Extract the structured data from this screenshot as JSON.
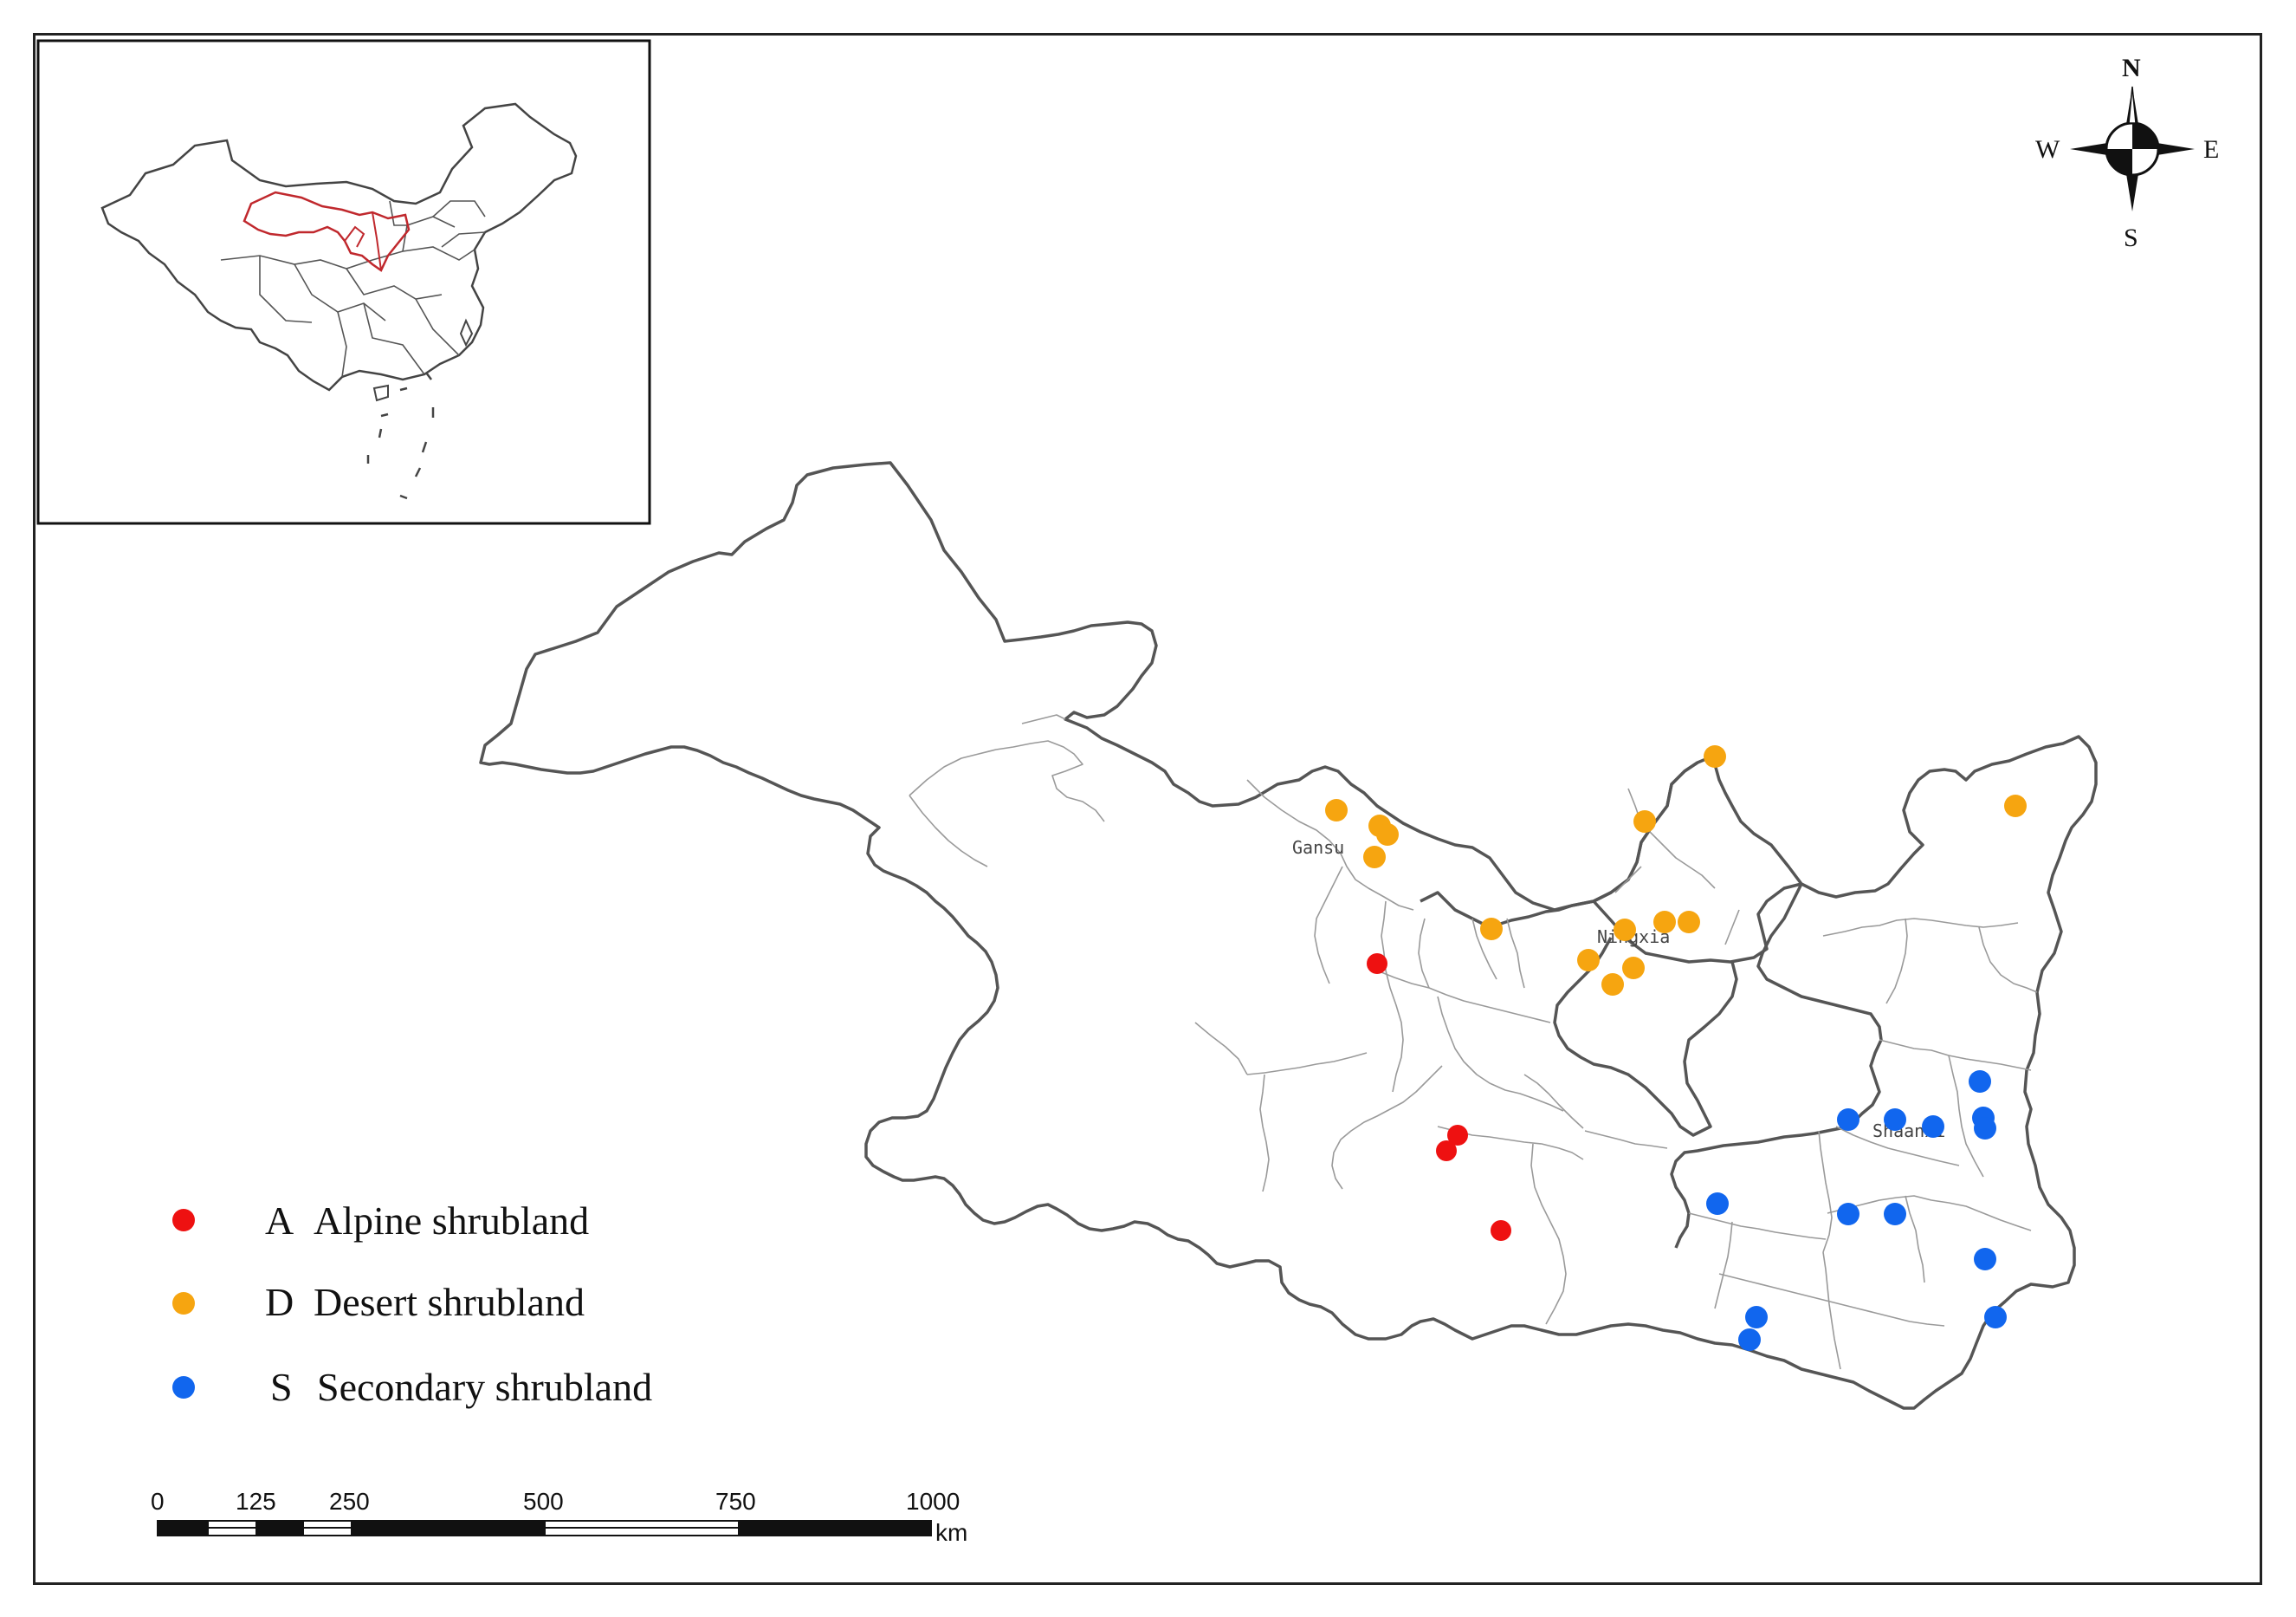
{
  "legend": {
    "items": [
      {
        "code": "A",
        "label": "Alpine shrubland",
        "color": "#ee1111"
      },
      {
        "code": "D",
        "label": "Desert shrubland",
        "color": "#f6a510"
      },
      {
        "code": "S",
        "label": "Secondary shrubland",
        "color": "#1166ee"
      }
    ]
  },
  "compass": {
    "north": "N",
    "south": "S",
    "east": "E",
    "west": "W"
  },
  "scale_bar": {
    "ticks": [
      "0",
      "125",
      "250",
      "500",
      "750",
      "1000"
    ],
    "unit": "km"
  },
  "places": {
    "gansu": "Gansu",
    "ningxia": "Ningxia",
    "shaanxi": "Shaanxi"
  },
  "colors": {
    "boundary": "#555555",
    "inset_highlight": "#c0282d",
    "county_lines": "#9a9a9a"
  }
}
